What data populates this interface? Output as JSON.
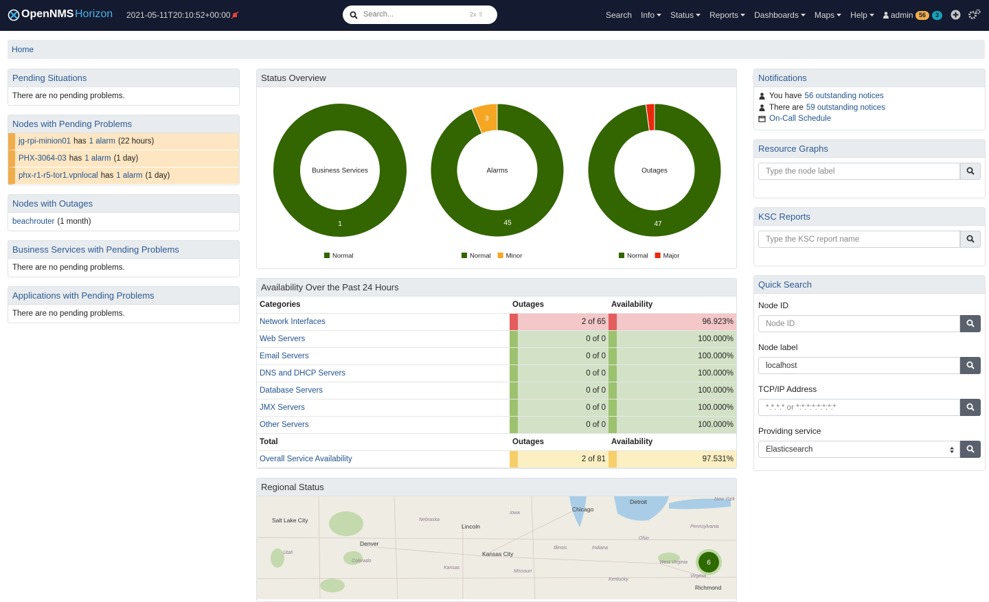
{
  "navbar": {
    "brand": "OpenNMS",
    "product": "Horizon",
    "timestamp": "2021-05-11T20:10:52+00:00",
    "search_placeholder": "Search...",
    "search_hint": "2x ⇧",
    "menu": [
      {
        "label": "Search",
        "dropdown": false
      },
      {
        "label": "Info",
        "dropdown": true
      },
      {
        "label": "Status",
        "dropdown": true
      },
      {
        "label": "Reports",
        "dropdown": true
      },
      {
        "label": "Dashboards",
        "dropdown": true
      },
      {
        "label": "Maps",
        "dropdown": true
      },
      {
        "label": "Help",
        "dropdown": true
      },
      {
        "label": "admin",
        "dropdown": true
      }
    ],
    "badges": [
      "56",
      "3"
    ]
  },
  "breadcrumb": "Home",
  "left_panels": [
    {
      "title": "Pending Situations",
      "message": "There are no pending problems."
    },
    {
      "title": "Nodes with Pending Problems",
      "items": [
        {
          "node": "jg-rpi-minion01",
          "text": "has",
          "link": "1 alarm",
          "age": "(22 hours)"
        },
        {
          "node": "PHX-3064-03",
          "text": "has",
          "link": "1 alarm",
          "age": "(1 day)"
        },
        {
          "node": "phx-r1-r5-tor1.vpnlocal",
          "text": "has",
          "link": "1 alarm",
          "age": "(1 day)"
        }
      ]
    },
    {
      "title": "Nodes with Outages",
      "outages": [
        {
          "node": "beachrouter",
          "age": "(1 month)"
        }
      ]
    },
    {
      "title": "Business Services with Pending Problems",
      "message": "There are no pending problems."
    },
    {
      "title": "Applications with Pending Problems",
      "message": "There are no pending problems."
    }
  ],
  "status_overview_title": "Status Overview",
  "chart_data": [
    {
      "type": "pie",
      "title": "Business Services",
      "categories": [
        "Normal"
      ],
      "values": [
        1
      ],
      "colors": [
        "#336600"
      ]
    },
    {
      "type": "pie",
      "title": "Alarms",
      "categories": [
        "Normal",
        "Minor"
      ],
      "values": [
        45,
        3
      ],
      "colors": [
        "#336600",
        "#f5a623"
      ]
    },
    {
      "type": "pie",
      "title": "Outages",
      "categories": [
        "Normal",
        "Major"
      ],
      "values": [
        47,
        1
      ],
      "colors": [
        "#336600",
        "#e8290b"
      ]
    }
  ],
  "availability": {
    "title": "Availability Over the Past 24 Hours",
    "header": [
      "Categories",
      "Outages",
      "Availability"
    ],
    "rows": [
      {
        "cells": [
          "Network Interfaces",
          "2 of 65",
          "96.923%"
        ],
        "status": "critical"
      },
      {
        "cells": [
          "Web Servers",
          "0 of 0",
          "100.000%"
        ],
        "status": "normal"
      },
      {
        "cells": [
          "Email Servers",
          "0 of 0",
          "100.000%"
        ],
        "status": "normal"
      },
      {
        "cells": [
          "DNS and DHCP Servers",
          "0 of 0",
          "100.000%"
        ],
        "status": "normal"
      },
      {
        "cells": [
          "Database Servers",
          "0 of 0",
          "100.000%"
        ],
        "status": "normal"
      },
      {
        "cells": [
          "JMX Servers",
          "0 of 0",
          "100.000%"
        ],
        "status": "normal"
      },
      {
        "cells": [
          "Other Servers",
          "0 of 0",
          "100.000%"
        ],
        "status": "normal"
      }
    ],
    "total_header": [
      "Total",
      "Outages",
      "Availability"
    ],
    "total_row": {
      "cells": [
        "Overall Service Availability",
        "2 of 81",
        "97.531%"
      ],
      "status": "warning"
    }
  },
  "regional": {
    "title": "Regional Status",
    "cluster": "6",
    "cities": [
      "Salt Lake City",
      "Denver",
      "Lincoln",
      "Chicago",
      "Detroit",
      "Kansas City",
      "Richmond"
    ],
    "states": [
      "Nebraska",
      "Iowa",
      "New York",
      "Missouri",
      "Illinois",
      "Indiana",
      "Ohio",
      "Pennsylvania",
      "Kentucky",
      "West Virginia",
      "Virginia",
      "Utah",
      "Colorado",
      "Kansas"
    ]
  },
  "notifications": {
    "title": "Notifications",
    "lines": [
      {
        "text": "You have",
        "link": "56 outstanding notices"
      },
      {
        "text": "There are",
        "link": "59 outstanding notices"
      },
      {
        "link": "On-Call Schedule"
      }
    ]
  },
  "resource_graphs": {
    "title": "Resource Graphs",
    "placeholder": "Type the node label"
  },
  "ksc_reports": {
    "title": "KSC Reports",
    "placeholder": "Type the KSC report name"
  },
  "quick_search": {
    "title": "Quick Search",
    "fields": [
      {
        "label": "Node ID",
        "placeholder": "Node ID"
      },
      {
        "label": "Node label",
        "value": "localhost"
      },
      {
        "label": "TCP/IP Address",
        "placeholder": "*.*.*.* or *:*:*:*:*:*:*:*"
      },
      {
        "label": "Providing service",
        "value": "Elasticsearch",
        "select": true
      }
    ]
  }
}
